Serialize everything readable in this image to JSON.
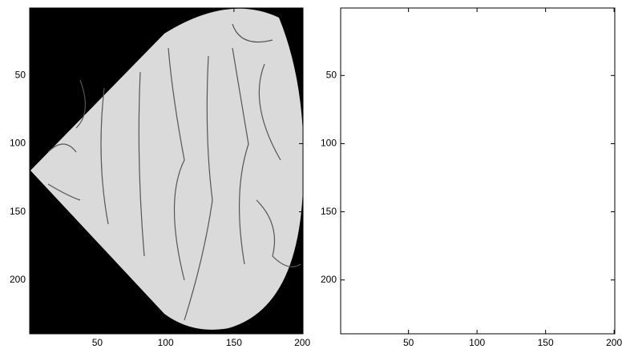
{
  "chart_data": [
    {
      "type": "image",
      "xlim": [
        0.5,
        200.5
      ],
      "ylim": [
        0.5,
        239.5
      ],
      "ydir": "reverse",
      "xticks": [
        50,
        100,
        150,
        200
      ],
      "yticks": [
        50,
        100,
        150,
        200
      ]
    },
    {
      "type": "image",
      "xlim": [
        0.5,
        200.5
      ],
      "ylim": [
        0.5,
        239.5
      ],
      "ydir": "reverse",
      "xticks": [
        50,
        100,
        150,
        200
      ],
      "yticks": [
        50,
        100,
        150,
        200
      ]
    }
  ]
}
